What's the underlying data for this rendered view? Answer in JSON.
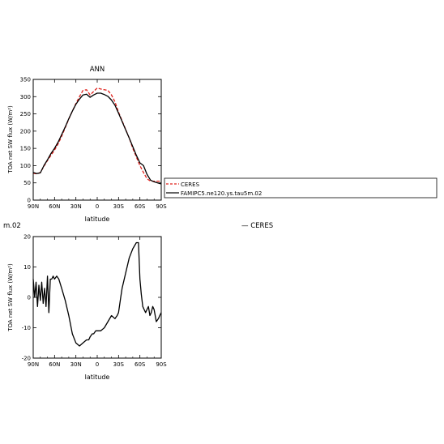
{
  "panel_title": "ANN",
  "legend": {
    "entries": [
      {
        "label": "CERES",
        "color": "#e0201b",
        "dash": true
      },
      {
        "label": "FAMIPC5.ne120.ys.tau5m.02",
        "color": "#000000",
        "dash": false
      }
    ]
  },
  "fragments": {
    "left_title": "m.02",
    "right_title": "— CERES"
  },
  "chart_data": [
    {
      "type": "line",
      "title": "ANN",
      "xlabel": "latitude",
      "ylabel": "TOA net SW flux (W/m²)",
      "x_tick_labels": [
        "90N",
        "60N",
        "30N",
        "0",
        "30S",
        "60S",
        "90S"
      ],
      "x_tick_values": [
        90,
        60,
        30,
        0,
        -30,
        -60,
        -90
      ],
      "xlim": [
        90,
        -90
      ],
      "ylim": [
        0,
        350
      ],
      "y_ticks": [
        0,
        50,
        100,
        150,
        200,
        250,
        300,
        350
      ],
      "x": [
        90,
        85,
        80,
        75,
        70,
        65,
        60,
        55,
        50,
        45,
        40,
        35,
        30,
        25,
        20,
        15,
        10,
        5,
        0,
        -5,
        -10,
        -15,
        -20,
        -25,
        -30,
        -35,
        -40,
        -45,
        -50,
        -55,
        -60,
        -65,
        -70,
        -75,
        -80,
        -85,
        -90
      ],
      "series": [
        {
          "name": "CERES",
          "color": "#e0201b",
          "dash": true,
          "values": [
            78,
            76,
            80,
            98,
            115,
            130,
            145,
            163,
            185,
            210,
            235,
            258,
            280,
            300,
            318,
            320,
            305,
            315,
            325,
            322,
            320,
            318,
            305,
            285,
            255,
            230,
            205,
            180,
            150,
            125,
            100,
            80,
            62,
            55,
            55,
            55,
            55
          ]
        },
        {
          "name": "FAMIPC5.ne120.ys.tau5m.02",
          "color": "#000000",
          "dash": false,
          "values": [
            80,
            77,
            79,
            100,
            117,
            135,
            150,
            168,
            190,
            212,
            236,
            258,
            278,
            293,
            305,
            307,
            298,
            305,
            310,
            310,
            306,
            301,
            290,
            275,
            252,
            228,
            204,
            180,
            155,
            130,
            108,
            100,
            75,
            58,
            53,
            50,
            47
          ]
        }
      ]
    },
    {
      "type": "line",
      "xlabel": "latitude",
      "ylabel": "TOA net SW flux (W/m²)",
      "x_tick_labels": [
        "90N",
        "60N",
        "30N",
        "0",
        "30S",
        "60S",
        "90S"
      ],
      "x_tick_values": [
        90,
        60,
        30,
        0,
        -30,
        -60,
        -90
      ],
      "xlim": [
        90,
        -90
      ],
      "ylim": [
        -20,
        20
      ],
      "y_ticks": [
        -20,
        -10,
        0,
        10,
        20
      ],
      "series": [
        {
          "name": "",
          "color": "#000000",
          "x": [
            90,
            88,
            86,
            84,
            82,
            80,
            78,
            76,
            74,
            72,
            70,
            68,
            66,
            64,
            62,
            60,
            57,
            54,
            50,
            45,
            40,
            35,
            30,
            25,
            20,
            15,
            12,
            10,
            7,
            5,
            2,
            0,
            -5,
            -10,
            -15,
            -20,
            -25,
            -28,
            -30,
            -33,
            -35,
            -40,
            -45,
            -50,
            -55,
            -58,
            -60,
            -62,
            -64,
            -66,
            -68,
            -70,
            -72,
            -74,
            -76,
            -78,
            -80,
            -83,
            -86,
            -88,
            -90
          ],
          "values": [
            6,
            0,
            5,
            -3,
            4,
            -1,
            5,
            -2,
            3,
            -3,
            7,
            -5,
            6,
            6,
            7,
            6,
            7,
            6,
            3,
            -1,
            -6,
            -12,
            -15,
            -16,
            -15,
            -14,
            -14,
            -13,
            -12,
            -12,
            -11,
            -11,
            -11,
            -10,
            -8,
            -6,
            -7,
            -6,
            -5,
            0,
            3,
            8,
            13,
            16,
            18,
            18,
            6,
            1,
            -3,
            -4,
            -5,
            -4,
            -3,
            -6,
            -5,
            -3,
            -4,
            -8,
            -7,
            -6,
            -5
          ]
        }
      ]
    }
  ]
}
